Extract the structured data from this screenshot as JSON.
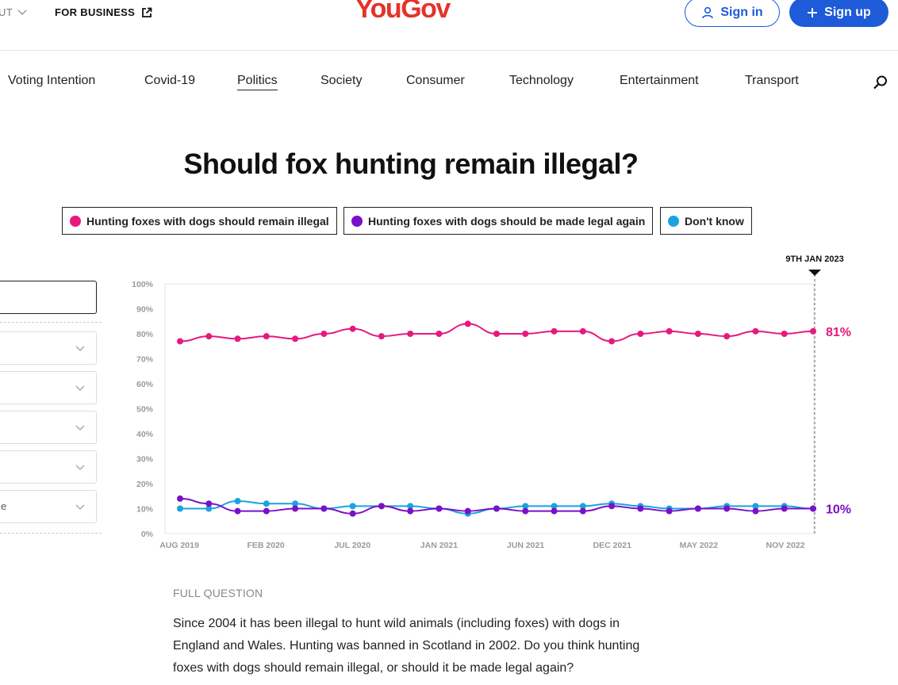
{
  "header": {
    "about_label": "UT",
    "business_label": "FOR BUSINESS",
    "logo_text": "YouGov",
    "signin_label": "Sign in",
    "signup_label": "Sign up"
  },
  "nav": {
    "items": [
      {
        "label": "Voting Intention"
      },
      {
        "label": "Covid-19"
      },
      {
        "label": "Politics",
        "active": true
      },
      {
        "label": "Society"
      },
      {
        "label": "Consumer"
      },
      {
        "label": "Technology"
      },
      {
        "label": "Entertainment"
      },
      {
        "label": "Transport"
      }
    ]
  },
  "page": {
    "title": "Should fox hunting remain illegal?"
  },
  "legend": {
    "items": [
      {
        "label": "Hunting foxes with dogs should remain illegal",
        "color": "#e6197d"
      },
      {
        "label": "Hunting foxes with dogs should be made legal again",
        "color": "#7a10c8"
      },
      {
        "label": "Don't know",
        "color": "#1aa3e0"
      }
    ]
  },
  "filters": {
    "last_select_value": "e"
  },
  "colors": {
    "remain": "#e6197d",
    "legal": "#7a10c8",
    "dontknow": "#1aa3e0",
    "brand": "#e5332a",
    "accent": "#1d5bd8"
  },
  "chart_data": {
    "type": "line",
    "ylim": [
      0,
      100
    ],
    "y_ticks": [
      "0%",
      "10%",
      "20%",
      "30%",
      "40%",
      "50%",
      "60%",
      "70%",
      "80%",
      "90%",
      "100%"
    ],
    "x_ticks": [
      "AUG 2019",
      "FEB 2020",
      "JUL 2020",
      "JAN 2021",
      "JUN 2021",
      "DEC 2021",
      "MAY 2022",
      "NOV 2022"
    ],
    "marker_label": "9TH JAN 2023",
    "end_labels": {
      "remain": "81%",
      "legal": "10%"
    },
    "series": [
      {
        "name": "Hunting foxes with dogs should remain illegal",
        "key": "remain",
        "values": [
          77,
          79,
          78,
          79,
          78,
          80,
          82,
          79,
          80,
          80,
          84,
          80,
          80,
          81,
          81,
          77,
          80,
          81,
          80,
          79,
          81,
          80,
          81
        ]
      },
      {
        "name": "Hunting foxes with dogs should be made legal again",
        "key": "legal",
        "values": [
          14,
          12,
          9,
          9,
          10,
          10,
          8,
          11,
          9,
          10,
          9,
          10,
          9,
          9,
          9,
          11,
          10,
          9,
          10,
          10,
          9,
          10,
          10
        ]
      },
      {
        "name": "Don't know",
        "key": "dontknow",
        "values": [
          10,
          10,
          13,
          12,
          12,
          10,
          11,
          11,
          11,
          10,
          8,
          10,
          11,
          11,
          11,
          12,
          11,
          10,
          10,
          11,
          11,
          11,
          10
        ]
      }
    ]
  },
  "question": {
    "label": "FULL QUESTION",
    "text": "Since 2004 it has been illegal to hunt wild animals (including foxes) with dogs in England and Wales. Hunting was banned in Scotland in 2002. Do you think hunting foxes with dogs should remain illegal, or should it be made legal again?"
  }
}
